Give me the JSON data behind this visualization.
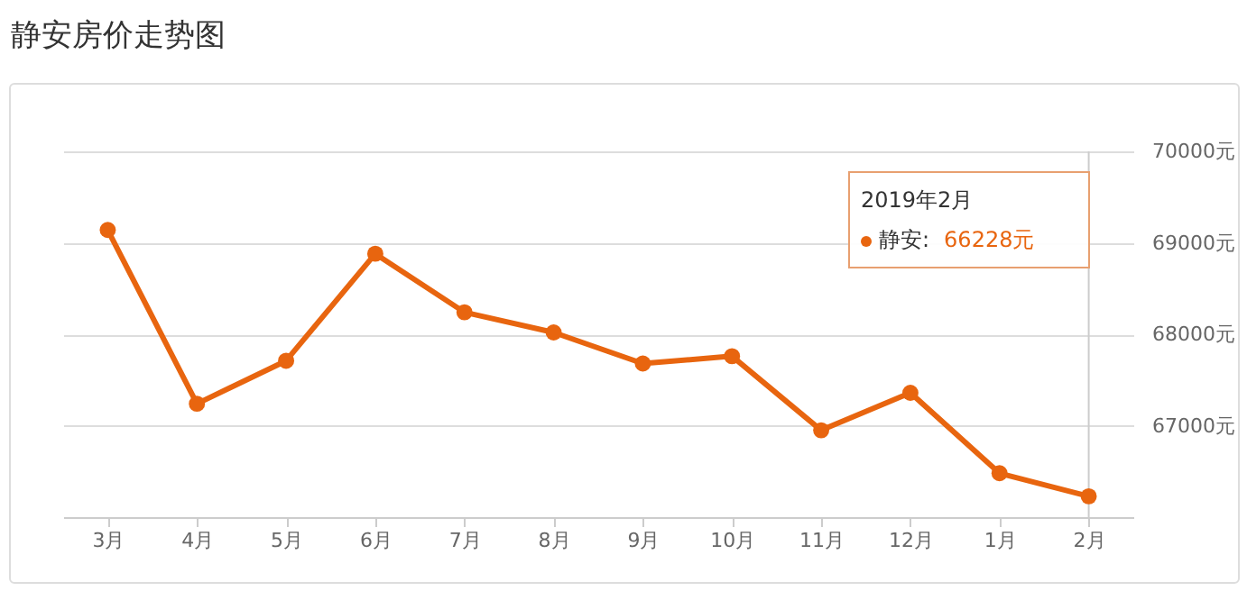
{
  "chart_data": {
    "type": "line",
    "title": "静安房价走势图",
    "categories": [
      "3月",
      "4月",
      "5月",
      "6月",
      "7月",
      "8月",
      "9月",
      "10月",
      "11月",
      "12月",
      "1月",
      "2月"
    ],
    "series": [
      {
        "color": "#e8650f",
        "values": [
          69140,
          67240,
          67710,
          68880,
          68240,
          68020,
          67680,
          67760,
          66950,
          67360,
          66480,
          66228
        ]
      }
    ],
    "ylim": [
      66000,
      70000
    ],
    "yticks": [
      {
        "value": 67000,
        "label": "67000元"
      },
      {
        "value": 68000,
        "label": "68000元"
      },
      {
        "value": 69000,
        "label": "69000元"
      },
      {
        "value": 70000,
        "label": "70000元"
      }
    ],
    "grid": "y",
    "marker": "circle",
    "legend": false,
    "ref_lines": [
      {
        "axis": "x",
        "value": "2月",
        "color": "#cccccc"
      }
    ],
    "annotations": [
      "2019年2月",
      "静安:",
      "66228元"
    ]
  }
}
